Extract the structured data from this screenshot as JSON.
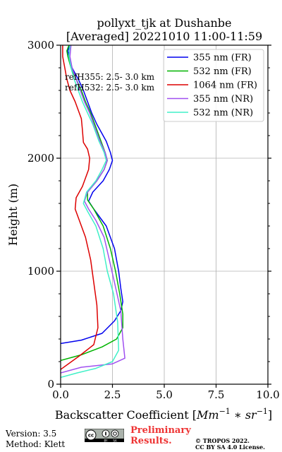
{
  "chart_data": {
    "type": "line",
    "title": "pollyxt_tjk at Dushanbe",
    "subtitle": "[Averaged] 20221010 11:00-11:59",
    "xlabel": "Backscatter Coefficient [$Mm^{-1}*sr^{-1}$]",
    "ylabel": "Height (m)",
    "xlim": [
      0,
      10
    ],
    "ylim": [
      0,
      3000
    ],
    "xticks": [
      "0.0",
      "2.5",
      "5.0",
      "7.5",
      "10.0"
    ],
    "yticks": [
      "0",
      "1000",
      "2000",
      "3000"
    ],
    "grid": true,
    "legend_position": "top-right",
    "annotations": [
      "refH355:  2.5- 3.0 km",
      "refH532:  2.5- 3.0 km"
    ],
    "series": [
      {
        "name": "355 nm (FR)",
        "color": "#0000ee",
        "x": [
          0.0,
          1.0,
          2.0,
          2.6,
          2.9,
          3.0,
          2.9,
          2.8,
          2.6,
          2.2,
          1.6,
          1.35,
          1.55,
          2.05,
          2.35,
          2.5,
          2.4,
          2.2,
          1.75,
          1.5,
          1.3,
          1.1,
          0.85,
          0.55,
          0.4,
          0.35,
          0.45
        ],
        "y": [
          360,
          390,
          450,
          560,
          650,
          730,
          850,
          1000,
          1200,
          1400,
          1550,
          1620,
          1700,
          1800,
          1900,
          1980,
          2050,
          2150,
          2300,
          2400,
          2500,
          2600,
          2700,
          2800,
          2900,
          2950,
          3000
        ]
      },
      {
        "name": "532 nm (FR)",
        "color": "#00b400",
        "x": [
          0.0,
          1.0,
          2.0,
          2.7,
          3.0,
          3.0,
          2.85,
          2.65,
          2.4,
          2.05,
          1.6,
          1.3,
          1.3,
          1.75,
          2.1,
          2.25,
          2.15,
          1.95,
          1.65,
          1.45,
          1.2,
          1.0,
          0.75,
          0.5,
          0.35,
          0.3,
          0.4
        ],
        "y": [
          210,
          260,
          330,
          400,
          500,
          620,
          800,
          1000,
          1200,
          1400,
          1550,
          1630,
          1700,
          1800,
          1900,
          1980,
          2050,
          2150,
          2300,
          2400,
          2500,
          2600,
          2700,
          2800,
          2900,
          2950,
          3000
        ]
      },
      {
        "name": "1064 nm (FR)",
        "color": "#dd0000",
        "x": [
          0.0,
          0.9,
          1.6,
          1.8,
          1.75,
          1.6,
          1.45,
          1.2,
          0.9,
          0.7,
          0.75,
          1.05,
          1.35,
          1.4,
          1.3,
          1.1,
          1.05,
          1.0,
          0.7,
          0.45,
          0.3,
          0.2,
          0.1,
          0.1
        ],
        "y": [
          130,
          250,
          350,
          500,
          700,
          900,
          1100,
          1300,
          1450,
          1550,
          1650,
          1750,
          1900,
          2000,
          2080,
          2140,
          2250,
          2350,
          2500,
          2600,
          2700,
          2800,
          2900,
          3000
        ]
      },
      {
        "name": "355 nm (NR)",
        "color": "#a050f0",
        "x": [
          0.0,
          1.0,
          2.5,
          3.1,
          3.0,
          2.9,
          2.6,
          2.35,
          2.1,
          1.7,
          1.35,
          1.15,
          1.3,
          1.75,
          2.1,
          2.25,
          2.15,
          1.9,
          1.6,
          1.4,
          1.15,
          0.95,
          0.75,
          0.55,
          0.45,
          0.5
        ],
        "y": [
          100,
          150,
          180,
          230,
          400,
          650,
          900,
          1100,
          1300,
          1450,
          1550,
          1620,
          1700,
          1800,
          1900,
          1980,
          2050,
          2150,
          2300,
          2400,
          2500,
          2600,
          2700,
          2800,
          2900,
          3000
        ]
      },
      {
        "name": "532 nm (NR)",
        "color": "#40f0c8",
        "x": [
          0.0,
          0.8,
          1.7,
          2.5,
          2.8,
          2.75,
          2.55,
          2.25,
          2.05,
          1.7,
          1.3,
          1.1,
          1.25,
          1.7,
          2.0,
          2.2,
          2.1,
          1.85,
          1.55,
          1.3,
          1.05,
          0.85,
          0.65,
          0.5,
          0.4,
          0.45
        ],
        "y": [
          60,
          100,
          140,
          200,
          300,
          550,
          800,
          1000,
          1200,
          1400,
          1530,
          1600,
          1700,
          1800,
          1900,
          1980,
          2050,
          2150,
          2300,
          2400,
          2500,
          2600,
          2700,
          2800,
          2900,
          3000
        ]
      }
    ]
  },
  "footer": {
    "version": "Version: 3.5",
    "method": "Method: Klett",
    "preliminary_line1": "Preliminary",
    "preliminary_line2": "Results.",
    "copyright_line1": "© TROPOS 2022.",
    "copyright_line2": "CC BY SA 4.0 License."
  }
}
